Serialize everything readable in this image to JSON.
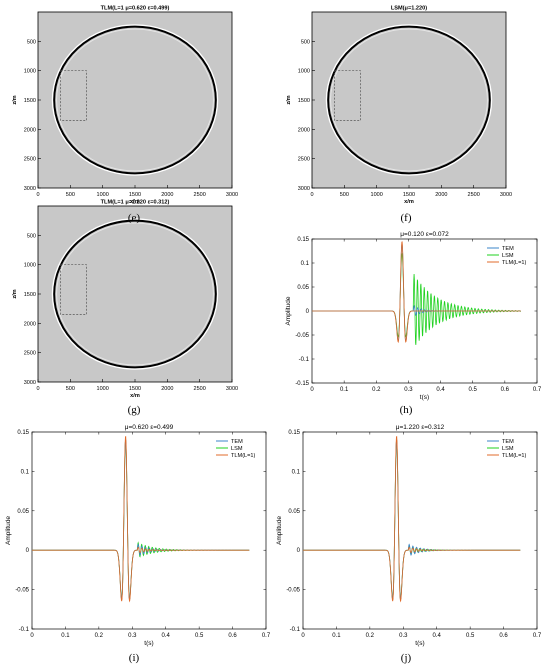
{
  "captions": [
    "(e)",
    "(f)",
    "(g)",
    "(h)",
    "(i)",
    "(j)"
  ],
  "chart_data": [
    {
      "type": "heatmap",
      "panel": "e",
      "title": "TLM(L=1 μ=0.620 ε=0.499)",
      "xlabel": "x/m",
      "ylabel": "z/m",
      "xlim": [
        0,
        3000
      ],
      "ylim": [
        3000,
        0
      ],
      "xticks": [
        0,
        500,
        1000,
        1500,
        2000,
        2500,
        3000
      ],
      "yticks": [
        500,
        1000,
        1500,
        2000,
        2500,
        3000
      ],
      "ring": {
        "center": [
          1500,
          1500
        ],
        "radius": 1250
      },
      "dashed_box": {
        "x": [
          350,
          750
        ],
        "z": [
          1000,
          1850
        ]
      },
      "background_color": "#c8c8c8"
    },
    {
      "type": "heatmap",
      "panel": "f",
      "title": "LSM(μ=1.220)",
      "xlabel": "x/m",
      "ylabel": "z/m",
      "xlim": [
        0,
        3000
      ],
      "ylim": [
        3000,
        0
      ],
      "xticks": [
        0,
        500,
        1000,
        1500,
        2000,
        2500,
        3000
      ],
      "yticks": [
        500,
        1000,
        1500,
        2000,
        2500,
        3000
      ],
      "ring": {
        "center": [
          1500,
          1500
        ],
        "radius": 1250
      },
      "dashed_box": {
        "x": [
          350,
          750
        ],
        "z": [
          1000,
          1850
        ]
      },
      "background_color": "#c8c8c8"
    },
    {
      "type": "heatmap",
      "panel": "g",
      "title": "TLM(L=1 μ=1.220 ε=0.312)",
      "xlabel": "x/m",
      "ylabel": "z/m",
      "xlim": [
        0,
        3000
      ],
      "ylim": [
        3000,
        0
      ],
      "xticks": [
        0,
        500,
        1000,
        1500,
        2000,
        2500,
        3000
      ],
      "yticks": [
        500,
        1000,
        1500,
        2000,
        2500,
        3000
      ],
      "ring": {
        "center": [
          1500,
          1500
        ],
        "radius": 1250
      },
      "dashed_box": {
        "x": [
          350,
          750
        ],
        "z": [
          1000,
          1850
        ]
      },
      "background_color": "#c8c8c8"
    },
    {
      "type": "line",
      "panel": "h",
      "title": "μ=0.120 ε=0.072",
      "xlabel": "t(s)",
      "ylabel": "Amplitude",
      "xlim": [
        0,
        0.7
      ],
      "ylim": [
        -0.15,
        0.15
      ],
      "xticks": [
        0,
        0.1,
        0.2,
        0.3,
        0.4,
        0.5,
        0.6,
        0.7
      ],
      "yticks": [
        -0.15,
        -0.1,
        -0.05,
        0,
        0.05,
        0.1,
        0.15
      ],
      "legend": "top-right",
      "series": [
        {
          "name": "TEM",
          "color": "#3b86c8",
          "amp": 0.14,
          "res_amp": 0.012,
          "res_decay": 40,
          "res_freq": 90
        },
        {
          "name": "LSM",
          "color": "#1fd11f",
          "amp": 0.12,
          "res_amp": 0.08,
          "res_decay": 14,
          "res_freq": 95
        },
        {
          "name": "TLM(L=1)",
          "color": "#e06b2b",
          "amp": 0.145,
          "res_amp": 0.0,
          "res_decay": 40,
          "res_freq": 90
        }
      ]
    },
    {
      "type": "line",
      "panel": "i",
      "title": "μ=0.620 ε=0.499",
      "xlabel": "t(s)",
      "ylabel": "Amplitude",
      "xlim": [
        0,
        0.7
      ],
      "ylim": [
        -0.1,
        0.15
      ],
      "xticks": [
        0,
        0.1,
        0.2,
        0.3,
        0.4,
        0.5,
        0.6,
        0.7
      ],
      "yticks": [
        -0.1,
        -0.05,
        0,
        0.05,
        0.1,
        0.15
      ],
      "legend": "top-right",
      "series": [
        {
          "name": "TEM",
          "color": "#3b86c8",
          "amp": 0.14,
          "res_amp": 0.008,
          "res_decay": 30,
          "res_freq": 90
        },
        {
          "name": "LSM",
          "color": "#1fd11f",
          "amp": 0.14,
          "res_amp": 0.01,
          "res_decay": 22,
          "res_freq": 95
        },
        {
          "name": "TLM(L=1)",
          "color": "#e06b2b",
          "amp": 0.145,
          "res_amp": 0.004,
          "res_decay": 35,
          "res_freq": 90
        }
      ]
    },
    {
      "type": "line",
      "panel": "j",
      "title": "μ=1.220 ε=0.312",
      "xlabel": "t(s)",
      "ylabel": "Amplitude",
      "xlim": [
        0,
        0.7
      ],
      "ylim": [
        -0.1,
        0.15
      ],
      "xticks": [
        0,
        0.1,
        0.2,
        0.3,
        0.4,
        0.5,
        0.6,
        0.7
      ],
      "yticks": [
        -0.1,
        -0.05,
        0,
        0.05,
        0.1,
        0.15
      ],
      "legend": "top-right",
      "series": [
        {
          "name": "TEM",
          "color": "#3b86c8",
          "amp": 0.14,
          "res_amp": 0.008,
          "res_decay": 30,
          "res_freq": 90
        },
        {
          "name": "LSM",
          "color": "#1fd11f",
          "amp": 0.14,
          "res_amp": 0.006,
          "res_decay": 30,
          "res_freq": 95
        },
        {
          "name": "TLM(L=1)",
          "color": "#e06b2b",
          "amp": 0.145,
          "res_amp": 0.004,
          "res_decay": 35,
          "res_freq": 90
        }
      ]
    }
  ]
}
